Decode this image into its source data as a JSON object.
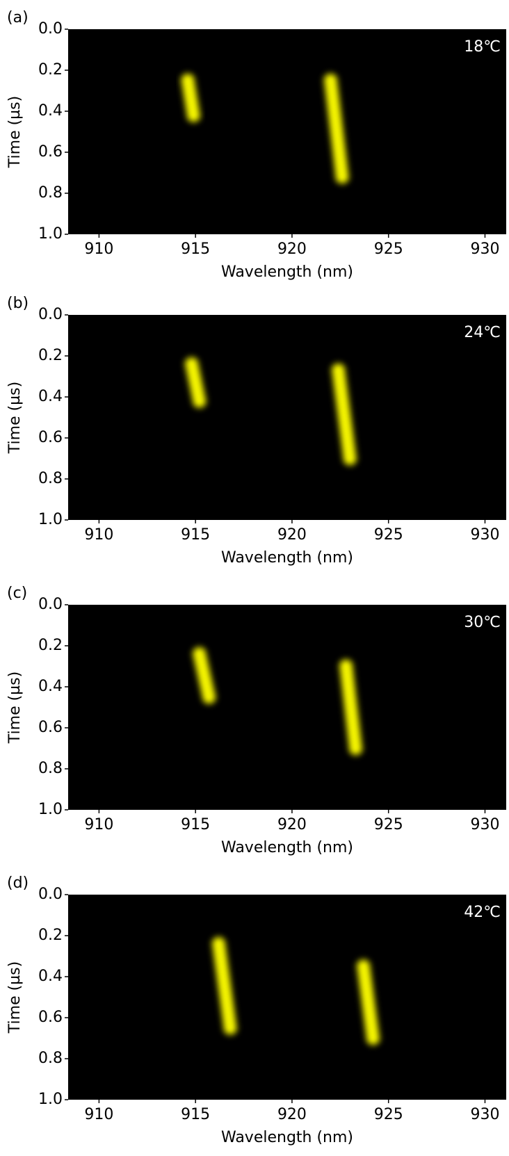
{
  "chart_data": [
    {
      "type": "streak",
      "panel_label": "(a)",
      "annotation": "18℃",
      "xlabel": "Wavelength (nm)",
      "ylabel": "Time (µs)",
      "xlim": [
        908.4,
        931.1
      ],
      "xticks": [
        910,
        915,
        920,
        925,
        930
      ],
      "ylim": [
        0,
        1
      ],
      "yinverted": true,
      "yticks": [
        {
          "value": 0,
          "label": "0.0"
        },
        0.2,
        0.4,
        0.6,
        0.8,
        {
          "value": 1,
          "label": "1.0"
        }
      ],
      "color": "#f2f200",
      "streaks": [
        {
          "x": [
            914.6,
            914.9
          ],
          "y": [
            0.25,
            0.42
          ]
        },
        {
          "x": [
            922.0,
            922.6
          ],
          "y": [
            0.25,
            0.72
          ]
        }
      ]
    },
    {
      "type": "streak",
      "panel_label": "(b)",
      "annotation": "24℃",
      "xlabel": "Wavelength (nm)",
      "ylabel": "Time (µs)",
      "xlim": [
        908.4,
        931.1
      ],
      "xticks": [
        910,
        915,
        920,
        925,
        930
      ],
      "ylim": [
        0,
        1
      ],
      "yinverted": true,
      "yticks": [
        {
          "value": 0,
          "label": "0.0"
        },
        0.2,
        0.4,
        0.6,
        0.8,
        {
          "value": 1,
          "label": "1.0"
        }
      ],
      "color": "#f2f200",
      "streaks": [
        {
          "x": [
            914.8,
            915.2
          ],
          "y": [
            0.24,
            0.42
          ]
        },
        {
          "x": [
            922.4,
            923.0
          ],
          "y": [
            0.27,
            0.7
          ]
        }
      ]
    },
    {
      "type": "streak",
      "panel_label": "(c)",
      "annotation": "30℃",
      "xlabel": "Wavelength (nm)",
      "ylabel": "Time (µs)",
      "xlim": [
        908.4,
        931.1
      ],
      "xticks": [
        910,
        915,
        920,
        925,
        930
      ],
      "ylim": [
        0,
        1
      ],
      "yinverted": true,
      "yticks": [
        {
          "value": 0,
          "label": "0.0"
        },
        0.2,
        0.4,
        0.6,
        0.8,
        {
          "value": 1,
          "label": "1.0"
        }
      ],
      "color": "#f2f200",
      "streaks": [
        {
          "x": [
            915.2,
            915.7
          ],
          "y": [
            0.24,
            0.45
          ]
        },
        {
          "x": [
            922.8,
            923.3
          ],
          "y": [
            0.3,
            0.7
          ]
        }
      ]
    },
    {
      "type": "streak",
      "panel_label": "(d)",
      "annotation": "42℃",
      "xlabel": "Wavelength (nm)",
      "ylabel": "Time (µs)",
      "xlim": [
        908.4,
        931.1
      ],
      "xticks": [
        910,
        915,
        920,
        925,
        930
      ],
      "ylim": [
        0,
        1
      ],
      "yinverted": true,
      "yticks": [
        {
          "value": 0,
          "label": "0.0"
        },
        0.2,
        0.4,
        0.6,
        0.8,
        {
          "value": 1,
          "label": "1.0"
        }
      ],
      "color": "#f2f200",
      "streaks": [
        {
          "x": [
            916.2,
            916.8
          ],
          "y": [
            0.24,
            0.65
          ]
        },
        {
          "x": [
            923.7,
            924.2
          ],
          "y": [
            0.35,
            0.7
          ]
        }
      ]
    }
  ]
}
